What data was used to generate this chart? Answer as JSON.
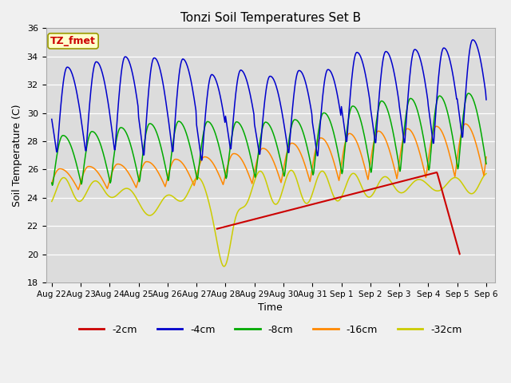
{
  "title": "Tonzi Soil Temperatures Set B",
  "xlabel": "Time",
  "ylabel": "Soil Temperature (C)",
  "ylim": [
    18,
    36
  ],
  "yticks": [
    18,
    20,
    22,
    24,
    26,
    28,
    30,
    32,
    34,
    36
  ],
  "xtick_labels": [
    "Aug 22",
    "Aug 23",
    "Aug 24",
    "Aug 25",
    "Aug 26",
    "Aug 27",
    "Aug 28",
    "Aug 29",
    "Aug 30",
    "Aug 31",
    "Sep 1",
    "Sep 2",
    "Sep 3",
    "Sep 4",
    "Sep 5",
    "Sep 6"
  ],
  "xtick_positions": [
    0,
    1,
    2,
    3,
    4,
    5,
    6,
    7,
    8,
    9,
    10,
    11,
    12,
    13,
    14,
    15
  ],
  "series_colors": {
    "-2cm": "#cc0000",
    "-4cm": "#0000cc",
    "-8cm": "#00aa00",
    "-16cm": "#ff8800",
    "-32cm": "#cccc00"
  },
  "fig_bg": "#f0f0f0",
  "plot_bg": "#dcdcdc",
  "grid_color": "#ffffff",
  "annotation_bg": "#ffffcc",
  "annotation_color": "#cc0000",
  "annotation_text": "TZ_fmet",
  "annotation_border": "#999900"
}
